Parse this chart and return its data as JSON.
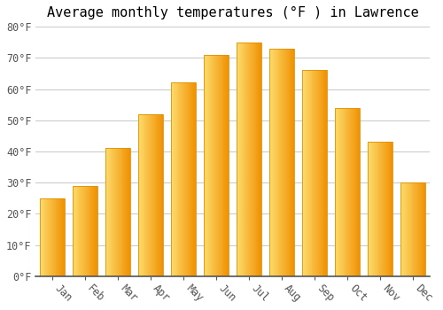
{
  "title": "Average monthly temperatures (°F ) in Lawrence",
  "months": [
    "Jan",
    "Feb",
    "Mar",
    "Apr",
    "May",
    "Jun",
    "Jul",
    "Aug",
    "Sep",
    "Oct",
    "Nov",
    "Dec"
  ],
  "values": [
    25,
    29,
    41,
    52,
    62,
    71,
    75,
    73,
    66,
    54,
    43,
    30
  ],
  "bar_color_left": "#FDD05A",
  "bar_color_right": "#F5A800",
  "bar_color_mid": "#FDBA27",
  "background_color": "#FFFFFF",
  "plot_bg_color": "#FFFFFF",
  "grid_color": "#CCCCCC",
  "ylim": [
    0,
    80
  ],
  "yticks": [
    0,
    10,
    20,
    30,
    40,
    50,
    60,
    70,
    80
  ],
  "ytick_labels": [
    "0°F",
    "10°F",
    "20°F",
    "30°F",
    "40°F",
    "50°F",
    "60°F",
    "70°F",
    "80°F"
  ],
  "title_fontsize": 11,
  "tick_fontsize": 8.5,
  "font_family": "monospace",
  "bar_width": 0.75
}
